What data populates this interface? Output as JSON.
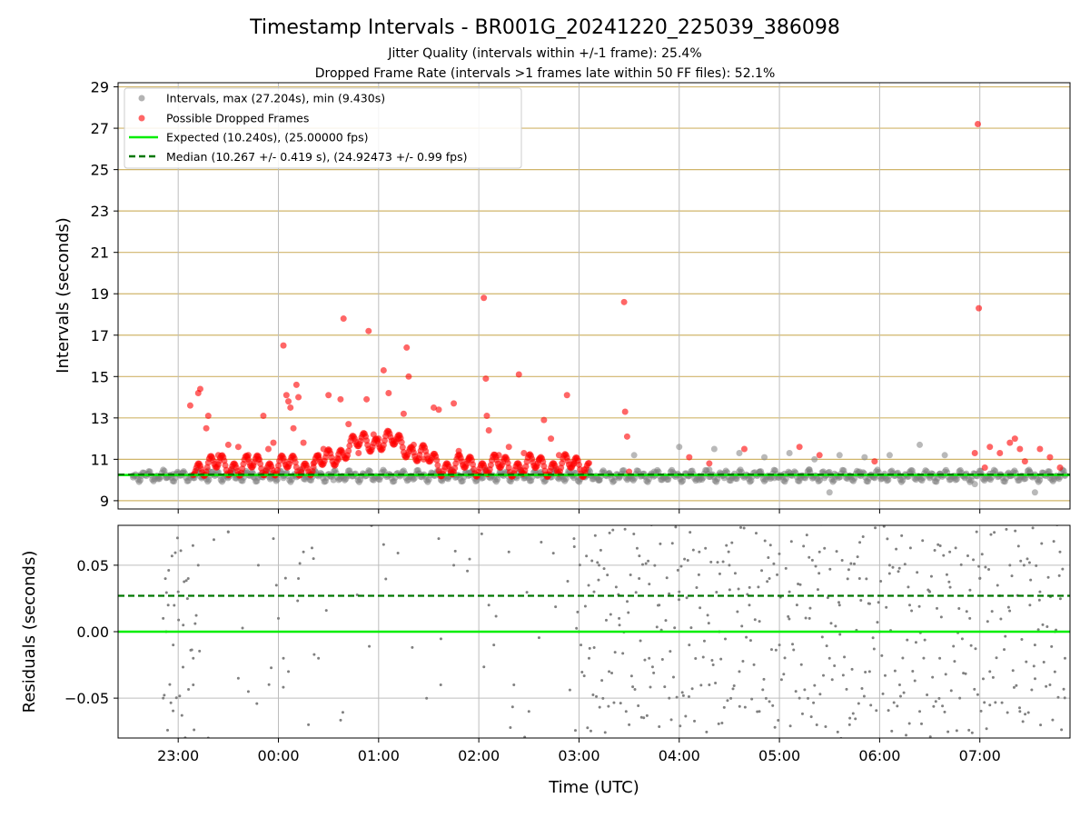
{
  "title": "Timestamp Intervals - BR001G_20241220_225039_386098",
  "subtitle1": "Jitter Quality (intervals within +/-1 frame): 25.4%",
  "subtitle2": "Dropped Frame Rate (intervals >1 frames late within 50 FF files): 52.1%",
  "colors": {
    "grey_points": "#808080",
    "red_points": "#ff0000",
    "expected_line": "#00ee00",
    "median_line": "#007700",
    "top_grid": "#c8a850",
    "x_grid": "#bdbdbd"
  },
  "chart_data": [
    {
      "type": "scatter",
      "panel": "intervals",
      "ylabel": "Intervals (seconds)",
      "ylim": [
        8.6,
        29.2
      ],
      "yticks": [
        "9",
        "11",
        "13",
        "15",
        "17",
        "19",
        "21",
        "23",
        "25",
        "27",
        "29"
      ],
      "xlim_hours": [
        -1.6,
        7.9
      ],
      "legend_position": "upper-left",
      "legend": {
        "intervals": "Intervals, max (27.204s), min (9.430s)",
        "dropped": "Possible Dropped Frames",
        "expected": "Expected (10.240s), (25.00000 fps)",
        "median": "Median (10.267 +/- 0.419 s), (24.92473 +/- 0.99 fps)"
      },
      "expected_value": 10.24,
      "median_value": 10.267,
      "max_interval": 27.204,
      "min_interval": 9.43,
      "series": [
        {
          "name": "Intervals, max (27.204s), min (9.430s)",
          "color": "#808080",
          "points": [
            [
              -1.45,
              10.22
            ],
            [
              -1.38,
              10.25
            ],
            [
              -1.3,
              10.3
            ],
            [
              -1.2,
              10.05
            ],
            [
              -1.12,
              10.1
            ],
            [
              -1.05,
              10.28
            ],
            [
              -0.95,
              10.35
            ],
            [
              -0.85,
              10.2
            ],
            [
              -0.7,
              10.45
            ],
            [
              -0.35,
              10.3
            ],
            [
              -0.25,
              10.15
            ],
            [
              -0.1,
              10.25
            ],
            [
              0.05,
              10.1
            ],
            [
              0.55,
              10.0
            ],
            [
              0.7,
              10.2
            ],
            [
              1.4,
              10.3
            ],
            [
              1.7,
              10.15
            ],
            [
              1.9,
              10.35
            ],
            [
              2.45,
              10.2
            ],
            [
              2.95,
              10.1
            ],
            [
              3.05,
              10.15
            ],
            [
              3.1,
              10.25
            ],
            [
              3.2,
              10.0
            ],
            [
              3.3,
              10.3
            ],
            [
              3.4,
              10.1
            ],
            [
              3.5,
              10.2
            ],
            [
              3.55,
              11.2
            ],
            [
              3.65,
              10.2
            ],
            [
              3.75,
              10.4
            ],
            [
              3.85,
              10.1
            ],
            [
              3.95,
              10.3
            ],
            [
              4.0,
              11.6
            ],
            [
              4.1,
              10.2
            ],
            [
              4.2,
              10.0
            ],
            [
              4.3,
              10.5
            ],
            [
              4.35,
              11.5
            ],
            [
              4.45,
              10.1
            ],
            [
              4.55,
              10.3
            ],
            [
              4.6,
              11.3
            ],
            [
              4.7,
              10.2
            ],
            [
              4.8,
              10.4
            ],
            [
              4.85,
              11.1
            ],
            [
              4.95,
              10.1
            ],
            [
              5.05,
              10.3
            ],
            [
              5.1,
              11.3
            ],
            [
              5.2,
              10.2
            ],
            [
              5.3,
              10.5
            ],
            [
              5.35,
              11.0
            ],
            [
              5.45,
              10.1
            ],
            [
              5.5,
              9.4
            ],
            [
              5.55,
              10.3
            ],
            [
              5.6,
              11.2
            ],
            [
              5.7,
              10.2
            ],
            [
              5.8,
              10.4
            ],
            [
              5.85,
              11.1
            ],
            [
              5.95,
              10.1
            ],
            [
              6.05,
              10.3
            ],
            [
              6.1,
              11.2
            ],
            [
              6.2,
              10.2
            ],
            [
              6.3,
              10.4
            ],
            [
              6.4,
              11.7
            ],
            [
              6.5,
              10.1
            ],
            [
              6.6,
              10.3
            ],
            [
              6.65,
              11.2
            ],
            [
              6.75,
              10.2
            ],
            [
              6.85,
              10.1
            ],
            [
              6.95,
              9.8
            ],
            [
              7.1,
              10.3
            ],
            [
              7.3,
              10.2
            ],
            [
              7.5,
              10.4
            ],
            [
              7.55,
              9.4
            ],
            [
              7.7,
              10.1
            ],
            [
              7.85,
              10.2
            ]
          ]
        },
        {
          "name": "Possible Dropped Frames",
          "color": "#ff0000",
          "points": [
            [
              -0.88,
              13.6
            ],
            [
              -0.8,
              14.2
            ],
            [
              -0.78,
              14.4
            ],
            [
              -0.72,
              12.5
            ],
            [
              -0.7,
              13.1
            ],
            [
              -0.6,
              11.2
            ],
            [
              -0.5,
              11.7
            ],
            [
              -0.4,
              11.6
            ],
            [
              -0.3,
              11.2
            ],
            [
              -0.2,
              11.0
            ],
            [
              -0.15,
              13.1
            ],
            [
              -0.1,
              11.5
            ],
            [
              -0.05,
              11.8
            ],
            [
              0.05,
              16.5
            ],
            [
              0.08,
              14.1
            ],
            [
              0.1,
              13.8
            ],
            [
              0.12,
              13.5
            ],
            [
              0.15,
              12.5
            ],
            [
              0.18,
              14.6
            ],
            [
              0.2,
              14.0
            ],
            [
              0.25,
              11.8
            ],
            [
              0.35,
              10.8
            ],
            [
              0.4,
              11.2
            ],
            [
              0.45,
              11.5
            ],
            [
              0.5,
              14.1
            ],
            [
              0.6,
              11.0
            ],
            [
              0.62,
              13.9
            ],
            [
              0.65,
              17.8
            ],
            [
              0.7,
              12.7
            ],
            [
              0.8,
              11.3
            ],
            [
              0.88,
              13.9
            ],
            [
              0.9,
              17.2
            ],
            [
              0.95,
              12.2
            ],
            [
              1.0,
              12.0
            ],
            [
              1.05,
              15.3
            ],
            [
              1.1,
              14.2
            ],
            [
              1.15,
              11.9
            ],
            [
              1.2,
              12.0
            ],
            [
              1.25,
              13.2
            ],
            [
              1.28,
              16.4
            ],
            [
              1.3,
              15.0
            ],
            [
              1.35,
              11.7
            ],
            [
              1.45,
              11.0
            ],
            [
              1.55,
              13.5
            ],
            [
              1.6,
              13.4
            ],
            [
              1.75,
              13.7
            ],
            [
              1.8,
              11.4
            ],
            [
              1.9,
              11.0
            ],
            [
              2.05,
              18.8
            ],
            [
              2.07,
              14.9
            ],
            [
              2.08,
              13.1
            ],
            [
              2.1,
              12.4
            ],
            [
              2.2,
              11.2
            ],
            [
              2.3,
              11.6
            ],
            [
              2.4,
              15.1
            ],
            [
              2.45,
              11.3
            ],
            [
              2.6,
              11.0
            ],
            [
              2.65,
              12.9
            ],
            [
              2.72,
              12.0
            ],
            [
              2.8,
              11.2
            ],
            [
              2.88,
              14.1
            ],
            [
              2.95,
              10.8
            ],
            [
              3.05,
              10.5
            ],
            [
              3.45,
              18.6
            ],
            [
              3.46,
              13.3
            ],
            [
              3.48,
              12.1
            ],
            [
              3.5,
              10.4
            ],
            [
              4.1,
              11.1
            ],
            [
              4.3,
              10.8
            ],
            [
              4.65,
              11.5
            ],
            [
              5.2,
              11.6
            ],
            [
              5.4,
              11.2
            ],
            [
              5.95,
              10.9
            ],
            [
              6.95,
              11.3
            ],
            [
              6.98,
              27.2
            ],
            [
              6.99,
              18.3
            ],
            [
              7.05,
              10.6
            ],
            [
              7.1,
              11.6
            ],
            [
              7.2,
              11.3
            ],
            [
              7.3,
              11.8
            ],
            [
              7.35,
              12.0
            ],
            [
              7.4,
              11.5
            ],
            [
              7.45,
              10.9
            ],
            [
              7.6,
              11.5
            ],
            [
              7.7,
              11.1
            ],
            [
              7.8,
              10.6
            ]
          ]
        }
      ]
    },
    {
      "type": "scatter",
      "panel": "residuals",
      "xlabel": "Time (UTC)",
      "ylabel": "Residuals (seconds)",
      "ylim": [
        -0.08,
        0.08
      ],
      "yticks": [
        "0.05",
        "0.00",
        "−0.05"
      ],
      "xticks": [
        "23:00",
        "00:00",
        "01:00",
        "02:00",
        "03:00",
        "04:00",
        "05:00",
        "06:00",
        "07:00"
      ],
      "xlim_hours": [
        -1.6,
        7.9
      ],
      "expected_residual": 0.0,
      "median_residual": 0.027,
      "series": [
        {
          "name": "",
          "color": "#808080",
          "points": [
            [
              -1.15,
              0.01
            ],
            [
              -1.12,
              0.0
            ],
            [
              -1.1,
              0.02
            ],
            [
              -1.05,
              -0.01
            ],
            [
              -1.0,
              0.03
            ],
            [
              -0.95,
              0.005
            ],
            [
              -0.9,
              0.04
            ],
            [
              -0.85,
              -0.02
            ],
            [
              -0.8,
              0.05
            ],
            [
              -1.15,
              -0.05
            ],
            [
              -0.85,
              -0.04
            ],
            [
              -0.7,
              -0.08
            ],
            [
              -0.5,
              0.075
            ],
            [
              -0.4,
              -0.035
            ],
            [
              -0.3,
              -0.045
            ],
            [
              -0.2,
              0.05
            ],
            [
              -0.05,
              0.07
            ],
            [
              -0.02,
              0.035
            ],
            [
              0.0,
              0.01
            ],
            [
              0.05,
              -0.02
            ],
            [
              0.1,
              -0.03
            ],
            [
              0.2,
              0.04
            ],
            [
              0.25,
              0.06
            ],
            [
              0.3,
              -0.07
            ],
            [
              0.35,
              0.055
            ],
            [
              0.4,
              -0.02
            ],
            [
              1.6,
              0.07
            ],
            [
              1.62,
              -0.04
            ],
            [
              1.75,
              0.05
            ],
            [
              2.1,
              0.02
            ],
            [
              2.15,
              -0.01
            ],
            [
              2.3,
              0.06
            ],
            [
              2.35,
              -0.04
            ],
            [
              2.5,
              -0.06
            ],
            [
              2.95,
              0.07
            ],
            [
              3.0,
              0.0
            ],
            [
              3.1,
              -0.02
            ],
            [
              3.15,
              0.03
            ],
            [
              3.2,
              0.05
            ],
            [
              3.3,
              -0.03
            ],
            [
              3.4,
              0.01
            ],
            [
              3.5,
              -0.07
            ],
            [
              3.6,
              0.04
            ],
            [
              3.7,
              -0.02
            ],
            [
              3.8,
              0.02
            ],
            [
              3.9,
              -0.05
            ],
            [
              4.0,
              0.03
            ],
            [
              4.1,
              -0.01
            ],
            [
              4.2,
              0.06
            ],
            [
              4.3,
              -0.04
            ],
            [
              4.4,
              0.0
            ],
            [
              4.5,
              0.05
            ],
            [
              4.6,
              -0.03
            ],
            [
              4.7,
              0.02
            ],
            [
              4.8,
              -0.06
            ],
            [
              4.9,
              0.04
            ],
            [
              5.0,
              -0.01
            ],
            [
              5.1,
              0.03
            ],
            [
              5.2,
              -0.05
            ],
            [
              5.3,
              0.01
            ],
            [
              5.4,
              0.06
            ],
            [
              5.5,
              -0.02
            ],
            [
              5.6,
              0.02
            ],
            [
              5.7,
              -0.07
            ],
            [
              5.8,
              0.04
            ],
            [
              5.9,
              -0.03
            ],
            [
              6.0,
              0.0
            ],
            [
              6.1,
              0.05
            ],
            [
              6.2,
              -0.04
            ],
            [
              6.3,
              0.02
            ],
            [
              6.4,
              -0.06
            ],
            [
              6.5,
              0.03
            ],
            [
              6.6,
              -0.02
            ],
            [
              6.7,
              0.06
            ],
            [
              6.8,
              -0.05
            ],
            [
              6.9,
              0.01
            ],
            [
              7.0,
              0.04
            ],
            [
              7.1,
              -0.03
            ],
            [
              7.3,
              0.05
            ],
            [
              7.4,
              -0.06
            ],
            [
              7.5,
              0.02
            ],
            [
              7.55,
              -0.01
            ],
            [
              7.6,
              0.03
            ],
            [
              7.7,
              -0.04
            ],
            [
              7.75,
              0.0
            ],
            [
              7.8,
              0.06
            ],
            [
              7.85,
              -0.02
            ]
          ]
        }
      ]
    }
  ]
}
